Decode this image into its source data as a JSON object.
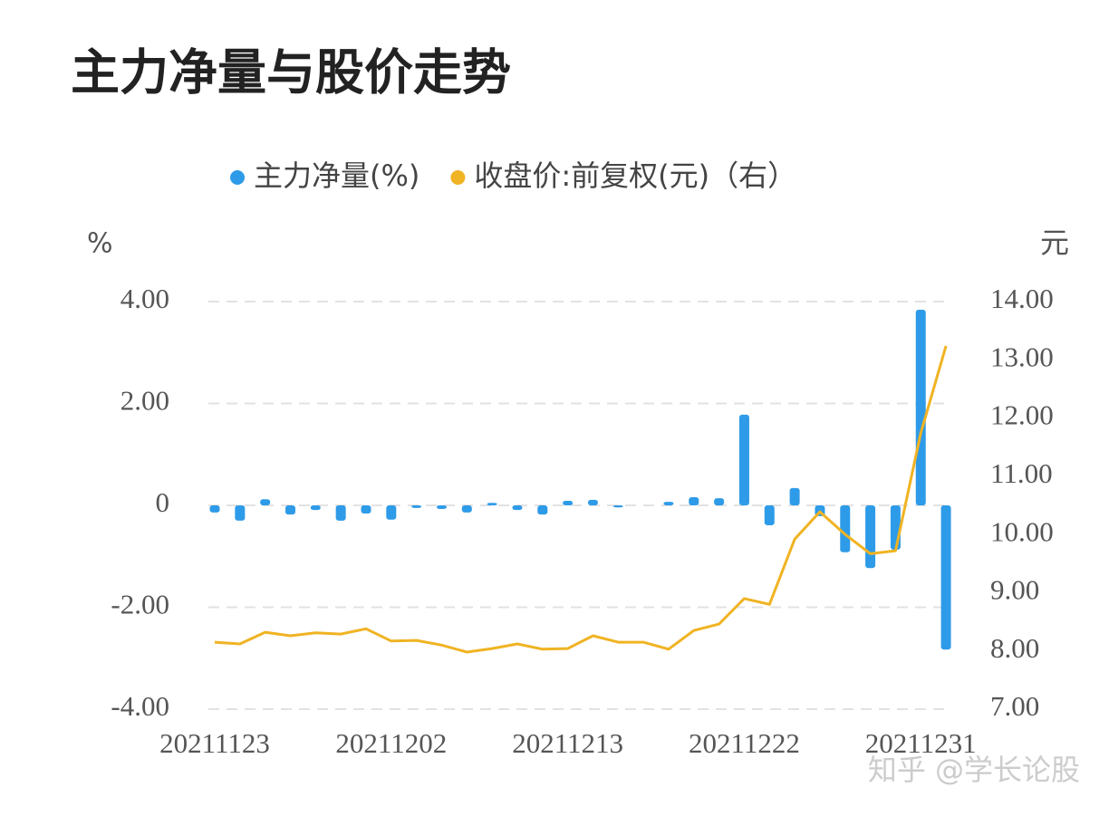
{
  "chart_data": {
    "type": "bar_line",
    "title": "主力净量与股价走势",
    "left_axis_label": "%",
    "right_axis_label": "元",
    "watermark": "知乎 @学长论股",
    "categories": [
      "20211123",
      null,
      null,
      null,
      null,
      null,
      null,
      "20211202",
      null,
      null,
      null,
      null,
      null,
      null,
      "20211213",
      null,
      null,
      null,
      null,
      null,
      null,
      "20211222",
      null,
      null,
      null,
      null,
      null,
      null,
      "20211231",
      null
    ],
    "series": [
      {
        "name": "主力净量(%)",
        "type": "bar",
        "color": "#2e9be8",
        "values": [
          -0.14,
          -0.3,
          0.12,
          -0.18,
          -0.09,
          -0.3,
          -0.16,
          -0.28,
          -0.05,
          -0.07,
          -0.14,
          0.05,
          -0.09,
          -0.18,
          0.09,
          0.11,
          -0.04,
          0,
          0.07,
          0.16,
          0.14,
          1.78,
          -0.39,
          0.34,
          -0.21,
          -0.92,
          -1.23,
          -0.87,
          3.84,
          -2.83
        ]
      },
      {
        "name": "收盘价:前复权(元)（右）",
        "type": "line",
        "axis": "y2",
        "color": "#f0b323",
        "values": [
          8.15,
          8.12,
          8.32,
          8.26,
          8.31,
          8.29,
          8.38,
          8.17,
          8.18,
          8.1,
          7.98,
          8.04,
          8.12,
          8.03,
          8.04,
          8.26,
          8.15,
          8.15,
          8.03,
          8.35,
          8.46,
          8.9,
          8.8,
          9.92,
          10.39,
          10.0,
          9.67,
          9.72,
          11.74,
          13.24
        ]
      }
    ],
    "ylim": [
      -4,
      4
    ],
    "yticks": [
      {
        "value": 4,
        "label": "4.00"
      },
      {
        "value": 2,
        "label": "2.00"
      },
      0,
      {
        "value": -2,
        "label": "-2.00"
      },
      {
        "value": -4,
        "label": "-4.00"
      }
    ],
    "y2lim": [
      7,
      14
    ],
    "y2ticks": [
      {
        "value": 14,
        "label": "14.00"
      },
      {
        "value": 13,
        "label": "13.00"
      },
      {
        "value": 12,
        "label": "12.00"
      },
      {
        "value": 11,
        "label": "11.00"
      },
      {
        "value": 10,
        "label": "10.00"
      },
      {
        "value": 9,
        "label": "9.00"
      },
      {
        "value": 8,
        "label": "8.00"
      },
      {
        "value": 7,
        "label": "7.00"
      }
    ],
    "grid": true
  }
}
